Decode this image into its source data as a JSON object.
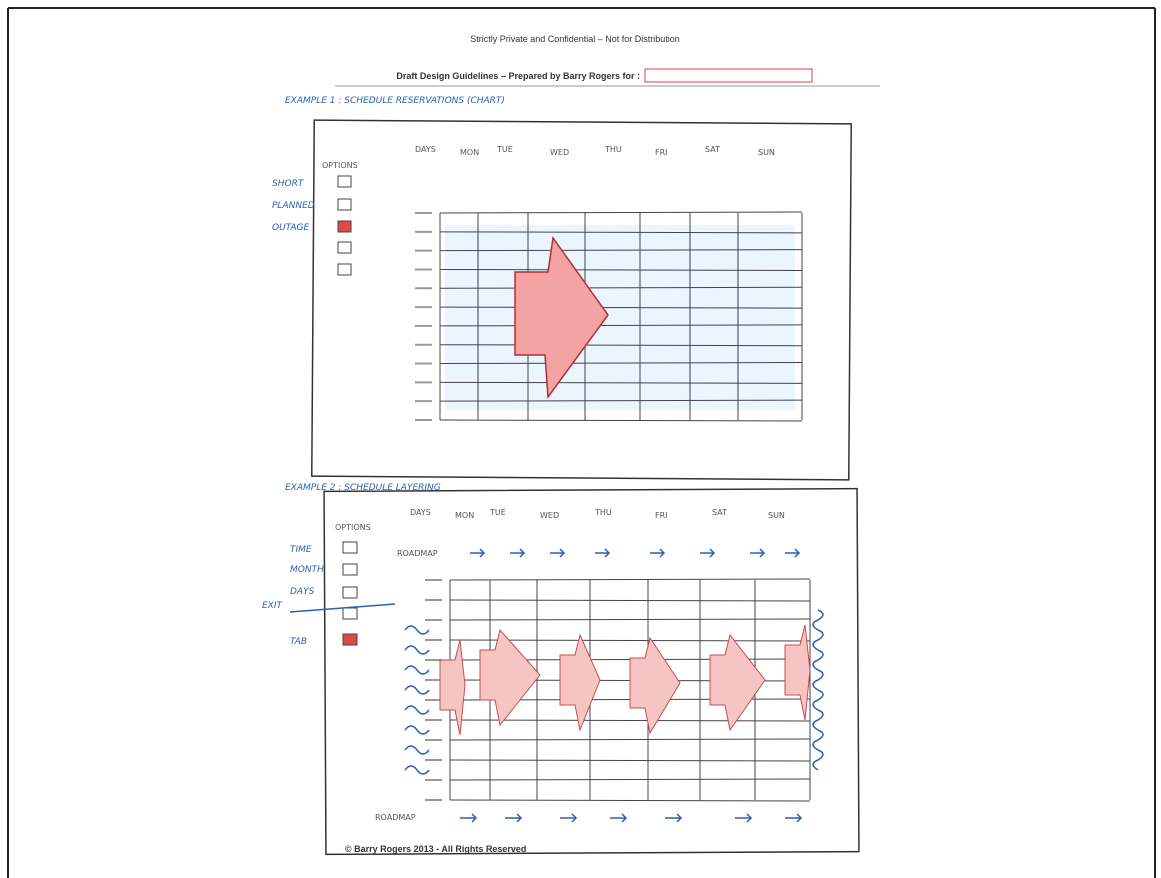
{
  "header": {
    "notice": "Strictly Private and Confidential – Not for Distribution",
    "title": "Draft Design Guidelines – Prepared by Barry Rogers for :"
  },
  "sketch_1": {
    "caption": "EXAMPLE 1 : SCHEDULE RESERVATIONS (CHART)",
    "days": [
      "DAYS",
      "MON",
      "TUE",
      "WED",
      "THU",
      "FRI",
      "SAT",
      "SUN"
    ],
    "options_label": "OPTIONS",
    "options": [
      "SHORT",
      "PLANNED",
      "OUTAGE"
    ]
  },
  "sketch_2": {
    "caption": "EXAMPLE 2 : SCHEDULE LAYERING",
    "days": [
      "DAYS",
      "MON",
      "TUE",
      "WED",
      "THU",
      "FRI",
      "SAT",
      "SUN"
    ],
    "options_label": "OPTIONS",
    "options": [
      "TIME",
      "MONTH",
      "DAYS",
      "EXIT",
      "TAB"
    ],
    "top_row_label": "ROADMAP",
    "bottom_row_label": "ROADMAP"
  },
  "footer": "© Barry Rogers 2013 - All Rights Reserved"
}
